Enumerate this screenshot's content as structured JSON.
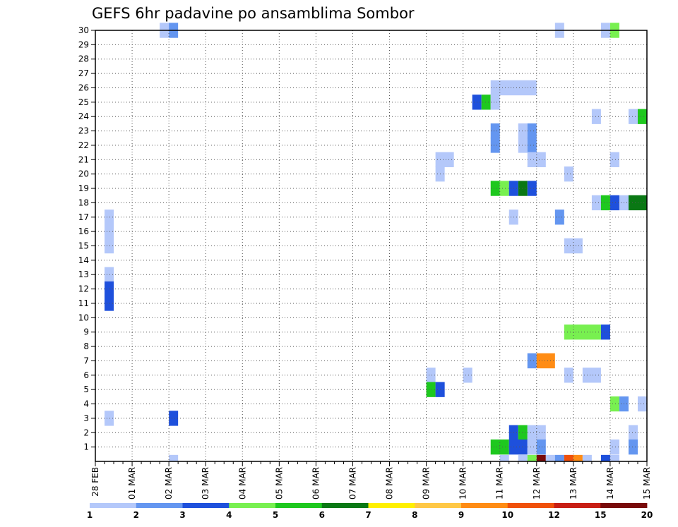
{
  "chart_data": {
    "type": "heatmap",
    "title": "GEFS 6hr padavine po ansamblima Sombor",
    "xlabel": "",
    "ylabel": "",
    "x_tick_labels": [
      "28 FEB",
      "01 MAR",
      "02 MAR",
      "03 MAR",
      "04 MAR",
      "05 MAR",
      "06 MAR",
      "07 MAR",
      "08 MAR",
      "09 MAR",
      "10 MAR",
      "11 MAR",
      "12 MAR",
      "13 MAR",
      "14 MAR",
      "15 MAR"
    ],
    "y_tick_labels": [
      "1",
      "2",
      "3",
      "4",
      "5",
      "6",
      "7",
      "8",
      "9",
      "10",
      "11",
      "12",
      "13",
      "14",
      "15",
      "16",
      "17",
      "18",
      "19",
      "20",
      "21",
      "22",
      "23",
      "24",
      "25",
      "26",
      "27",
      "28",
      "29",
      "30"
    ],
    "time_step_hours": 6,
    "steps_per_day": 4,
    "x_range_days": [
      0,
      15
    ],
    "y_range": [
      0,
      30
    ],
    "grid": true,
    "colorbar": {
      "labels": [
        "1",
        "2",
        "3",
        "4",
        "5",
        "6",
        "7",
        "8",
        "9",
        "10",
        "12",
        "15",
        "20"
      ],
      "colors": [
        "#b4c8fa",
        "#6496f0",
        "#1e50dc",
        "#78f050",
        "#1ec81e",
        "#0a7814",
        "#fff000",
        "#ffc846",
        "#ff8c14",
        "#f0500a",
        "#c81e14",
        "#780a0a"
      ]
    },
    "cells": [
      {
        "member": 30,
        "day": 1.75,
        "steps": 1,
        "color": "#b4c8fa"
      },
      {
        "member": 30,
        "day": 2.0,
        "steps": 1,
        "color": "#6496f0"
      },
      {
        "member": 30,
        "day": 12.5,
        "steps": 1,
        "color": "#b4c8fa"
      },
      {
        "member": 30,
        "day": 13.75,
        "steps": 1,
        "color": "#b4c8fa"
      },
      {
        "member": 30,
        "day": 14.0,
        "steps": 1,
        "color": "#78f050"
      },
      {
        "member": 26,
        "day": 10.75,
        "steps": 5,
        "color": "#b4c8fa"
      },
      {
        "member": 25,
        "day": 10.25,
        "steps": 1,
        "color": "#1e50dc"
      },
      {
        "member": 25,
        "day": 10.5,
        "steps": 1,
        "color": "#1ec81e"
      },
      {
        "member": 25,
        "day": 10.75,
        "steps": 1,
        "color": "#b4c8fa"
      },
      {
        "member": 24,
        "day": 13.5,
        "steps": 1,
        "color": "#b4c8fa"
      },
      {
        "member": 24,
        "day": 14.5,
        "steps": 1,
        "color": "#b4c8fa"
      },
      {
        "member": 24,
        "day": 14.75,
        "steps": 1,
        "color": "#1ec81e"
      },
      {
        "member": 23,
        "day": 10.75,
        "steps": 1,
        "color": "#6496f0"
      },
      {
        "member": 23,
        "day": 11.5,
        "steps": 1,
        "color": "#b4c8fa"
      },
      {
        "member": 23,
        "day": 11.75,
        "steps": 1,
        "color": "#6496f0"
      },
      {
        "member": 22,
        "day": 10.75,
        "steps": 1,
        "color": "#6496f0"
      },
      {
        "member": 22,
        "day": 11.5,
        "steps": 1,
        "color": "#b4c8fa"
      },
      {
        "member": 22,
        "day": 11.75,
        "steps": 1,
        "color": "#6496f0"
      },
      {
        "member": 22,
        "day": 11.75,
        "steps": 2,
        "color": "#b4c8fa",
        "y_offset": -1
      },
      {
        "member": 21,
        "day": 9.25,
        "steps": 2,
        "color": "#b4c8fa"
      },
      {
        "member": 21,
        "day": 14.0,
        "steps": 1,
        "color": "#b4c8fa"
      },
      {
        "member": 20,
        "day": 9.25,
        "steps": 1,
        "color": "#b4c8fa"
      },
      {
        "member": 20,
        "day": 12.75,
        "steps": 1,
        "color": "#b4c8fa"
      },
      {
        "member": 19,
        "day": 10.75,
        "steps": 1,
        "color": "#1ec81e"
      },
      {
        "member": 19,
        "day": 11.0,
        "steps": 1,
        "color": "#78f050"
      },
      {
        "member": 19,
        "day": 11.25,
        "steps": 1,
        "color": "#1e50dc"
      },
      {
        "member": 19,
        "day": 11.5,
        "steps": 1,
        "color": "#0a7814"
      },
      {
        "member": 19,
        "day": 11.75,
        "steps": 1,
        "color": "#1e50dc"
      },
      {
        "member": 18,
        "day": 13.5,
        "steps": 1,
        "color": "#b4c8fa"
      },
      {
        "member": 18,
        "day": 13.75,
        "steps": 1,
        "color": "#1ec81e"
      },
      {
        "member": 18,
        "day": 14.0,
        "steps": 1,
        "color": "#1e50dc"
      },
      {
        "member": 18,
        "day": 14.25,
        "steps": 1,
        "color": "#b4c8fa"
      },
      {
        "member": 18,
        "day": 14.5,
        "steps": 2,
        "color": "#0a7814"
      },
      {
        "member": 17,
        "day": 0.25,
        "steps": 1,
        "color": "#b4c8fa"
      },
      {
        "member": 17,
        "day": 11.25,
        "steps": 1,
        "color": "#b4c8fa"
      },
      {
        "member": 17,
        "day": 12.5,
        "steps": 1,
        "color": "#6496f0"
      },
      {
        "member": 16,
        "day": 0.25,
        "steps": 1,
        "color": "#b4c8fa"
      },
      {
        "member": 15,
        "day": 0.25,
        "steps": 1,
        "color": "#b4c8fa"
      },
      {
        "member": 15,
        "day": 12.75,
        "steps": 2,
        "color": "#b4c8fa"
      },
      {
        "member": 13,
        "day": 0.25,
        "steps": 1,
        "color": "#b4c8fa"
      },
      {
        "member": 12,
        "day": 0.25,
        "steps": 1,
        "color": "#1e50dc"
      },
      {
        "member": 11,
        "day": 0.25,
        "steps": 1,
        "color": "#1e50dc"
      },
      {
        "member": 9,
        "day": 12.75,
        "steps": 4,
        "color": "#78f050"
      },
      {
        "member": 9,
        "day": 13.75,
        "steps": 1,
        "color": "#1e50dc"
      },
      {
        "member": 7,
        "day": 11.75,
        "steps": 1,
        "color": "#6496f0"
      },
      {
        "member": 7,
        "day": 12.0,
        "steps": 2,
        "color": "#ff8c14"
      },
      {
        "member": 6,
        "day": 9.0,
        "steps": 1,
        "color": "#b4c8fa"
      },
      {
        "member": 6,
        "day": 10.0,
        "steps": 1,
        "color": "#b4c8fa"
      },
      {
        "member": 6,
        "day": 12.75,
        "steps": 1,
        "color": "#b4c8fa"
      },
      {
        "member": 6,
        "day": 13.25,
        "steps": 2,
        "color": "#b4c8fa"
      },
      {
        "member": 5,
        "day": 9.0,
        "steps": 1,
        "color": "#1ec81e"
      },
      {
        "member": 5,
        "day": 9.25,
        "steps": 1,
        "color": "#1e50dc"
      },
      {
        "member": 4,
        "day": 14.0,
        "steps": 1,
        "color": "#78f050"
      },
      {
        "member": 4,
        "day": 14.25,
        "steps": 1,
        "color": "#6496f0"
      },
      {
        "member": 4,
        "day": 14.75,
        "steps": 1,
        "color": "#b4c8fa"
      },
      {
        "member": 3,
        "day": 0.25,
        "steps": 1,
        "color": "#b4c8fa"
      },
      {
        "member": 3,
        "day": 2.0,
        "steps": 1,
        "color": "#1e50dc"
      },
      {
        "member": 2,
        "day": 11.25,
        "steps": 1,
        "color": "#1e50dc"
      },
      {
        "member": 2,
        "day": 11.5,
        "steps": 1,
        "color": "#1ec81e"
      },
      {
        "member": 2,
        "day": 11.75,
        "steps": 2,
        "color": "#b4c8fa"
      },
      {
        "member": 2,
        "day": 14.5,
        "steps": 1,
        "color": "#b4c8fa"
      },
      {
        "member": 1,
        "day": 10.75,
        "steps": 2,
        "color": "#1ec81e"
      },
      {
        "member": 1,
        "day": 11.25,
        "steps": 2,
        "color": "#1e50dc"
      },
      {
        "member": 1,
        "day": 11.75,
        "steps": 1,
        "color": "#b4c8fa"
      },
      {
        "member": 1,
        "day": 12.0,
        "steps": 1,
        "color": "#6496f0"
      },
      {
        "member": 1,
        "day": 14.0,
        "steps": 1,
        "color": "#b4c8fa"
      },
      {
        "member": 1,
        "day": 14.5,
        "steps": 1,
        "color": "#6496f0"
      },
      {
        "member": 0,
        "day": 2.0,
        "steps": 1,
        "color": "#b4c8fa"
      },
      {
        "member": 0,
        "day": 11.0,
        "steps": 1,
        "color": "#b4c8fa"
      },
      {
        "member": 0,
        "day": 11.5,
        "steps": 1,
        "color": "#b4c8fa"
      },
      {
        "member": 0,
        "day": 11.75,
        "steps": 1,
        "color": "#78f050"
      },
      {
        "member": 0,
        "day": 12.0,
        "steps": 1,
        "color": "#780a0a"
      },
      {
        "member": 0,
        "day": 12.25,
        "steps": 1,
        "color": "#b4c8fa"
      },
      {
        "member": 0,
        "day": 12.5,
        "steps": 1,
        "color": "#6496f0"
      },
      {
        "member": 0,
        "day": 12.75,
        "steps": 1,
        "color": "#f0500a"
      },
      {
        "member": 0,
        "day": 13.0,
        "steps": 1,
        "color": "#ff8c14"
      },
      {
        "member": 0,
        "day": 13.25,
        "steps": 1,
        "color": "#b4c8fa"
      },
      {
        "member": 0,
        "day": 13.75,
        "steps": 1,
        "color": "#1e50dc"
      },
      {
        "member": 0,
        "day": 14.0,
        "steps": 1,
        "color": "#b4c8fa"
      }
    ]
  }
}
